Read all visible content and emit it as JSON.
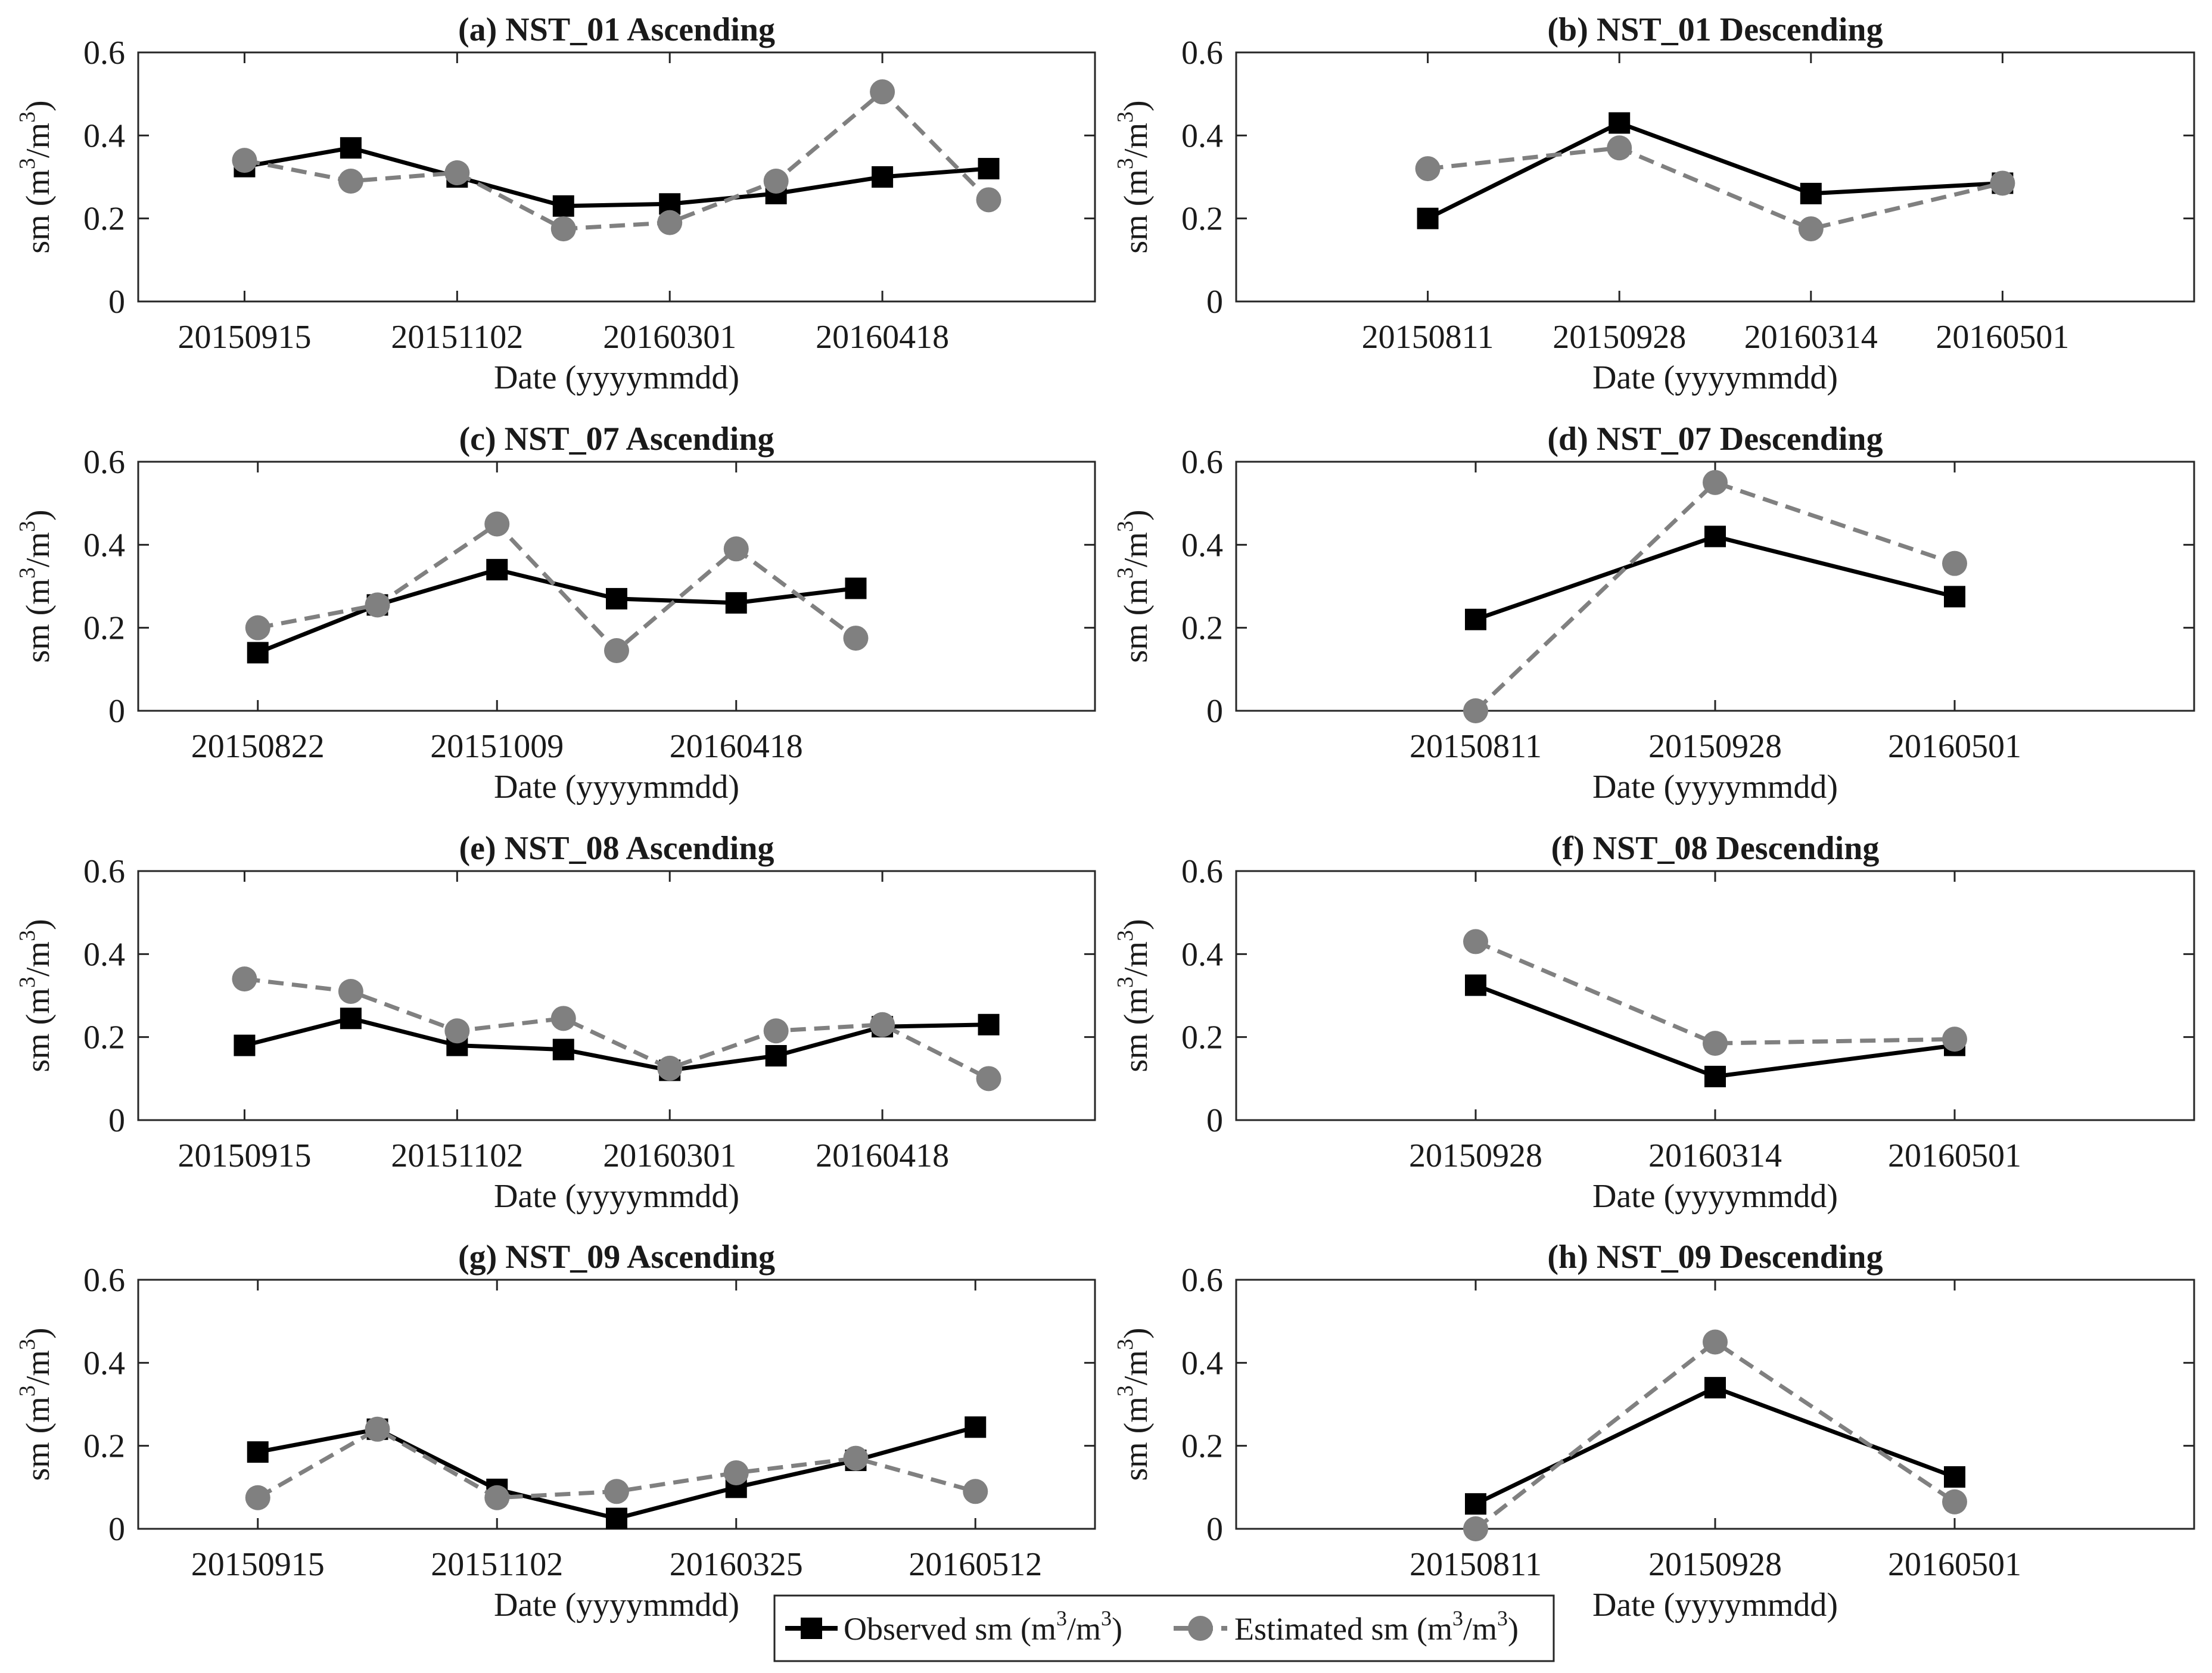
{
  "colors": {
    "observed": "#000000",
    "estimated": "#808080",
    "axis": "#262626"
  },
  "legend": {
    "observed_label": "Observed sm (m",
    "estimated_label": "Estimated sm (m",
    "unit_sup": "3",
    "unit_mid": "/m",
    "unit_end": ")"
  },
  "chart_data": [
    {
      "type": "line",
      "title": "(a) NST_01 Ascending",
      "xlabel": "Date (yyyymmdd)",
      "ylabel_pre": "sm (m",
      "ylabel_sup": "3",
      "ylabel_mid": "/m",
      "ylabel_end": ")",
      "ylim": [
        0,
        0.6
      ],
      "yticks": [
        "0",
        "0.2",
        "0.4",
        "0.6"
      ],
      "xlim": [
        0,
        9
      ],
      "xticks": [
        {
          "x": 1,
          "label": "20150915"
        },
        {
          "x": 3,
          "label": "20151102"
        },
        {
          "x": 5,
          "label": "20160301"
        },
        {
          "x": 7,
          "label": "20160418"
        }
      ],
      "x": [
        1,
        2,
        3,
        4,
        5,
        6,
        7,
        8
      ],
      "series": [
        {
          "name": "Observed",
          "values": [
            0.325,
            0.37,
            0.3,
            0.23,
            0.235,
            0.26,
            0.3,
            0.32
          ]
        },
        {
          "name": "Estimated",
          "values": [
            0.34,
            0.29,
            0.31,
            0.175,
            0.19,
            0.29,
            0.505,
            0.245
          ]
        }
      ]
    },
    {
      "type": "line",
      "title": "(b) NST_01 Descending",
      "xlabel": "Date (yyyymmdd)",
      "ylabel_pre": "sm (m",
      "ylabel_sup": "3",
      "ylabel_mid": "/m",
      "ylabel_end": ")",
      "ylim": [
        0,
        0.6
      ],
      "yticks": [
        "0",
        "0.2",
        "0.4",
        "0.6"
      ],
      "xlim": [
        0,
        5
      ],
      "xticks": [
        {
          "x": 1,
          "label": "20150811"
        },
        {
          "x": 2,
          "label": "20150928"
        },
        {
          "x": 3,
          "label": "20160314"
        },
        {
          "x": 4,
          "label": "20160501"
        }
      ],
      "x": [
        1,
        2,
        3,
        4
      ],
      "series": [
        {
          "name": "Observed",
          "values": [
            0.2,
            0.43,
            0.26,
            0.285
          ]
        },
        {
          "name": "Estimated",
          "values": [
            0.32,
            0.37,
            0.175,
            0.285
          ]
        }
      ]
    },
    {
      "type": "line",
      "title": "(c) NST_07 Ascending",
      "xlabel": "Date (yyyymmdd)",
      "ylabel_pre": "sm (m",
      "ylabel_sup": "3",
      "ylabel_mid": "/m",
      "ylabel_end": ")",
      "ylim": [
        0,
        0.6
      ],
      "yticks": [
        "0",
        "0.2",
        "0.4",
        "0.6"
      ],
      "xlim": [
        0,
        8
      ],
      "xticks": [
        {
          "x": 1,
          "label": "20150822"
        },
        {
          "x": 3,
          "label": "20151009"
        },
        {
          "x": 5,
          "label": "20160418"
        }
      ],
      "x": [
        1,
        2,
        3,
        4,
        5,
        6
      ],
      "series": [
        {
          "name": "Observed",
          "values": [
            0.14,
            0.255,
            0.34,
            0.27,
            0.26,
            0.295
          ]
        },
        {
          "name": "Estimated",
          "values": [
            0.2,
            0.255,
            0.45,
            0.145,
            0.39,
            0.175
          ]
        }
      ]
    },
    {
      "type": "line",
      "title": "(d) NST_07 Descending",
      "xlabel": "Date (yyyymmdd)",
      "ylabel_pre": "sm (m",
      "ylabel_sup": "3",
      "ylabel_mid": "/m",
      "ylabel_end": ")",
      "ylim": [
        0,
        0.6
      ],
      "yticks": [
        "0",
        "0.2",
        "0.4",
        "0.6"
      ],
      "xlim": [
        0,
        4
      ],
      "xticks": [
        {
          "x": 1,
          "label": "20150811"
        },
        {
          "x": 2,
          "label": "20150928"
        },
        {
          "x": 3,
          "label": "20160501"
        }
      ],
      "x": [
        1,
        2,
        3
      ],
      "series": [
        {
          "name": "Observed",
          "values": [
            0.22,
            0.42,
            0.275
          ]
        },
        {
          "name": "Estimated",
          "values": [
            0.0,
            0.55,
            0.355
          ]
        }
      ]
    },
    {
      "type": "line",
      "title": "(e) NST_08 Ascending",
      "xlabel": "Date (yyyymmdd)",
      "ylabel_pre": "sm (m",
      "ylabel_sup": "3",
      "ylabel_mid": "/m",
      "ylabel_end": ")",
      "ylim": [
        0,
        0.6
      ],
      "yticks": [
        "0",
        "0.2",
        "0.4",
        "0.6"
      ],
      "xlim": [
        0,
        9
      ],
      "xticks": [
        {
          "x": 1,
          "label": "20150915"
        },
        {
          "x": 3,
          "label": "20151102"
        },
        {
          "x": 5,
          "label": "20160301"
        },
        {
          "x": 7,
          "label": "20160418"
        }
      ],
      "x": [
        1,
        2,
        3,
        4,
        5,
        6,
        7,
        8
      ],
      "series": [
        {
          "name": "Observed",
          "values": [
            0.18,
            0.245,
            0.18,
            0.17,
            0.12,
            0.155,
            0.225,
            0.23
          ]
        },
        {
          "name": "Estimated",
          "values": [
            0.34,
            0.31,
            0.215,
            0.245,
            0.125,
            0.215,
            0.23,
            0.1
          ]
        }
      ]
    },
    {
      "type": "line",
      "title": "(f) NST_08 Descending",
      "xlabel": "Date (yyyymmdd)",
      "ylabel_pre": "sm (m",
      "ylabel_sup": "3",
      "ylabel_mid": "/m",
      "ylabel_end": ")",
      "ylim": [
        0,
        0.6
      ],
      "yticks": [
        "0",
        "0.2",
        "0.4",
        "0.6"
      ],
      "xlim": [
        0,
        4
      ],
      "xticks": [
        {
          "x": 1,
          "label": "20150928"
        },
        {
          "x": 2,
          "label": "20160314"
        },
        {
          "x": 3,
          "label": "20160501"
        }
      ],
      "x": [
        1,
        2,
        3
      ],
      "series": [
        {
          "name": "Observed",
          "values": [
            0.325,
            0.105,
            0.18
          ]
        },
        {
          "name": "Estimated",
          "values": [
            0.43,
            0.185,
            0.195
          ]
        }
      ]
    },
    {
      "type": "line",
      "title": "(g) NST_09 Ascending",
      "xlabel": "Date (yyyymmdd)",
      "ylabel_pre": "sm (m",
      "ylabel_sup": "3",
      "ylabel_mid": "/m",
      "ylabel_end": ")",
      "ylim": [
        0,
        0.6
      ],
      "yticks": [
        "0",
        "0.2",
        "0.4",
        "0.6"
      ],
      "xlim": [
        0,
        8
      ],
      "xticks": [
        {
          "x": 1,
          "label": "20150915"
        },
        {
          "x": 3,
          "label": "20151102"
        },
        {
          "x": 5,
          "label": "20160325"
        },
        {
          "x": 7,
          "label": "20160512"
        }
      ],
      "x": [
        1,
        2,
        3,
        4,
        5,
        6,
        7
      ],
      "series": [
        {
          "name": "Observed",
          "values": [
            0.185,
            0.24,
            0.095,
            0.025,
            0.1,
            0.165,
            0.245
          ]
        },
        {
          "name": "Estimated",
          "values": [
            0.075,
            0.24,
            0.075,
            0.09,
            0.135,
            0.17,
            0.09
          ]
        }
      ]
    },
    {
      "type": "line",
      "title": "(h) NST_09 Descending",
      "xlabel": "Date (yyyymmdd)",
      "ylabel_pre": "sm (m",
      "ylabel_sup": "3",
      "ylabel_mid": "/m",
      "ylabel_end": ")",
      "ylim": [
        0,
        0.6
      ],
      "yticks": [
        "0",
        "0.2",
        "0.4",
        "0.6"
      ],
      "xlim": [
        0,
        4
      ],
      "xticks": [
        {
          "x": 1,
          "label": "20150811"
        },
        {
          "x": 2,
          "label": "20150928"
        },
        {
          "x": 3,
          "label": "20160501"
        }
      ],
      "x": [
        1,
        2,
        3
      ],
      "series": [
        {
          "name": "Observed",
          "values": [
            0.06,
            0.34,
            0.125
          ]
        },
        {
          "name": "Estimated",
          "values": [
            0.0,
            0.45,
            0.065
          ]
        }
      ]
    }
  ]
}
